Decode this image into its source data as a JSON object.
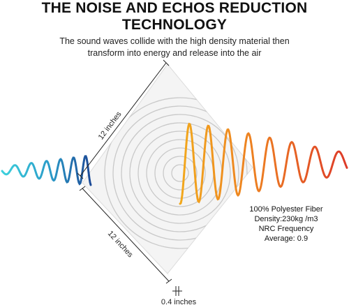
{
  "header": {
    "title_line1": "THE NOISE AND ECHOS REDUCTION",
    "title_line2": "TECHNOLOGY",
    "subtitle_line1": "The sound waves collide with the high density material then",
    "subtitle_line2": "transform into energy and release into the air"
  },
  "dimensions": {
    "top_edge": "12 inches",
    "bottom_edge": "12 inches",
    "thickness": "0.4 inches"
  },
  "specs": {
    "material": "100% Polyester Fiber",
    "density": "Density:230kg /m3",
    "nrc_label": "NRC Frequency",
    "nrc_value": "Average: 0.9"
  },
  "colors": {
    "incoming_wave_start": "#33c3d6",
    "incoming_wave_end": "#1c4f9c",
    "outgoing_wave_start": "#f0a020",
    "outgoing_wave_end": "#e0402a",
    "panel_fill": "#f4f4f4",
    "panel_circles": "#c9c9c9"
  }
}
